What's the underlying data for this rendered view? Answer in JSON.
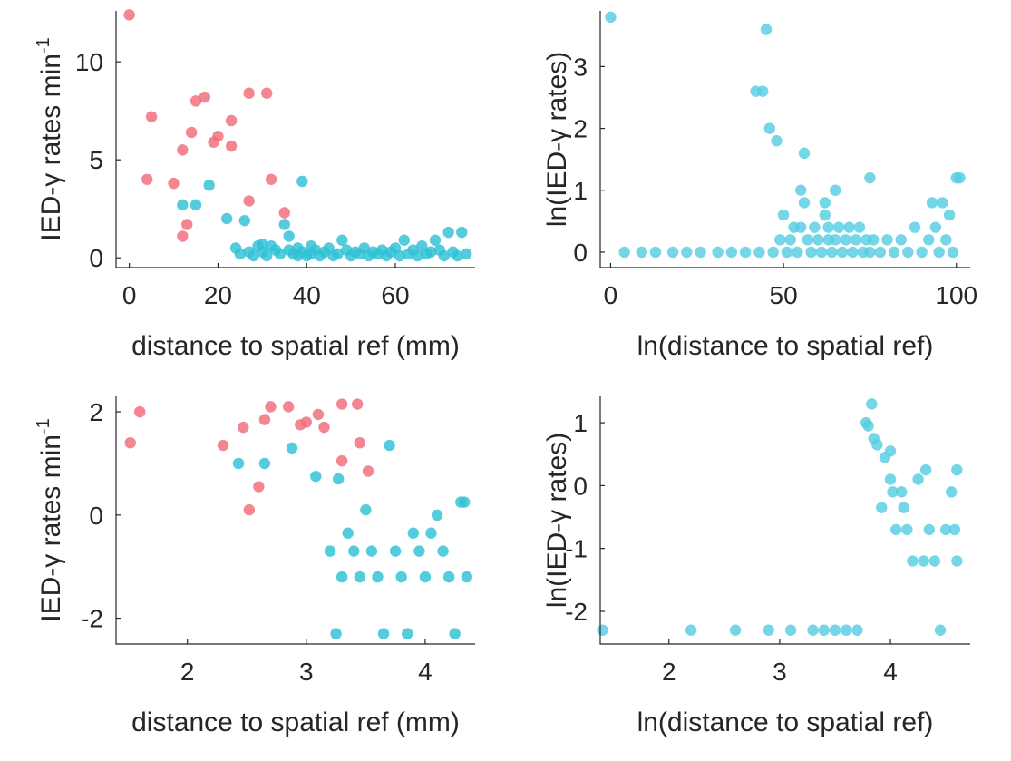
{
  "colors": {
    "red": "#F26B7A",
    "cyan": "#2EC1D6",
    "cyan_light": "#55CDE0",
    "axis": "#262626"
  },
  "chart_data": [
    {
      "type": "scatter",
      "xlabel": "distance to spatial ref (mm)",
      "ylabel": "IED-γ rates min",
      "ylabel_sup": "-1",
      "xlim": [
        -3,
        78
      ],
      "ylim": [
        -0.5,
        12.6
      ],
      "xticks": [
        0,
        20,
        40,
        60
      ],
      "yticks": [
        0,
        5,
        10
      ],
      "tick_labels_x": [
        "0",
        "20",
        "40",
        "60"
      ],
      "tick_labels_y": [
        "0",
        "5",
        "10"
      ],
      "series": [
        {
          "color": "red",
          "points": [
            [
              0,
              12.4
            ],
            [
              4,
              4.0
            ],
            [
              5,
              7.2
            ],
            [
              10,
              3.8
            ],
            [
              12,
              1.1
            ],
            [
              12,
              5.5
            ],
            [
              13,
              1.7
            ],
            [
              14,
              6.4
            ],
            [
              15,
              8.0
            ],
            [
              17,
              8.2
            ],
            [
              19,
              5.9
            ],
            [
              20,
              6.2
            ],
            [
              23,
              5.7
            ],
            [
              23,
              7.0
            ],
            [
              27,
              2.9
            ],
            [
              27,
              8.4
            ],
            [
              31,
              8.4
            ],
            [
              32,
              4.0
            ],
            [
              35,
              2.3
            ]
          ]
        },
        {
          "color": "cyan",
          "points": [
            [
              12,
              2.7
            ],
            [
              15,
              2.7
            ],
            [
              18,
              3.7
            ],
            [
              22,
              2.0
            ],
            [
              24,
              0.5
            ],
            [
              25,
              0.2
            ],
            [
              26,
              1.9
            ],
            [
              27,
              0.3
            ],
            [
              28,
              0.1
            ],
            [
              29,
              0.6
            ],
            [
              30,
              0.3
            ],
            [
              30,
              0.7
            ],
            [
              31,
              0.1
            ],
            [
              32,
              0.6
            ],
            [
              33,
              0.4
            ],
            [
              34,
              0.2
            ],
            [
              35,
              1.7
            ],
            [
              36,
              1.1
            ],
            [
              36,
              0.4
            ],
            [
              37,
              0.2
            ],
            [
              38,
              0.5
            ],
            [
              38,
              0.1
            ],
            [
              39,
              3.9
            ],
            [
              39,
              0.3
            ],
            [
              40,
              0.1
            ],
            [
              41,
              0.6
            ],
            [
              41,
              0.2
            ],
            [
              42,
              0.4
            ],
            [
              43,
              0.1
            ],
            [
              44,
              0.3
            ],
            [
              45,
              0.5
            ],
            [
              46,
              0.1
            ],
            [
              47,
              0.2
            ],
            [
              48,
              0.9
            ],
            [
              49,
              0.4
            ],
            [
              50,
              0.1
            ],
            [
              51,
              0.3
            ],
            [
              52,
              0.2
            ],
            [
              53,
              0.5
            ],
            [
              54,
              0.1
            ],
            [
              55,
              0.3
            ],
            [
              56,
              0.2
            ],
            [
              57,
              0.4
            ],
            [
              58,
              0.1
            ],
            [
              59,
              0.3
            ],
            [
              60,
              0.5
            ],
            [
              61,
              0.1
            ],
            [
              62,
              0.9
            ],
            [
              63,
              0.2
            ],
            [
              64,
              0.4
            ],
            [
              65,
              0.1
            ],
            [
              66,
              0.6
            ],
            [
              67,
              0.2
            ],
            [
              68,
              0.3
            ],
            [
              69,
              0.9
            ],
            [
              70,
              0.4
            ],
            [
              71,
              0.1
            ],
            [
              72,
              1.3
            ],
            [
              73,
              0.3
            ],
            [
              74,
              0.1
            ],
            [
              75,
              1.3
            ],
            [
              76,
              0.2
            ]
          ]
        }
      ]
    },
    {
      "type": "scatter",
      "xlabel": "ln(distance to spatial ref)",
      "ylabel": "ln(IED-γ rates)",
      "xlim": [
        -3,
        104
      ],
      "ylim": [
        -0.25,
        3.9
      ],
      "xticks": [
        0,
        50,
        100
      ],
      "yticks": [
        0,
        1,
        2,
        3
      ],
      "tick_labels_x": [
        "0",
        "50",
        "100"
      ],
      "tick_labels_y": [
        "0",
        "1",
        "2",
        "3"
      ],
      "series": [
        {
          "color": "cyan_light",
          "points": [
            [
              0,
              3.8
            ],
            [
              4,
              0
            ],
            [
              9,
              0
            ],
            [
              13,
              0
            ],
            [
              18,
              0
            ],
            [
              22,
              0
            ],
            [
              26,
              0
            ],
            [
              31,
              0
            ],
            [
              35,
              0
            ],
            [
              39,
              0
            ],
            [
              42,
              2.6
            ],
            [
              43,
              0
            ],
            [
              44,
              2.6
            ],
            [
              45,
              3.6
            ],
            [
              46,
              2.0
            ],
            [
              47,
              0
            ],
            [
              48,
              1.8
            ],
            [
              49,
              0.2
            ],
            [
              50,
              0.6
            ],
            [
              51,
              0
            ],
            [
              52,
              0.2
            ],
            [
              53,
              0.4
            ],
            [
              54,
              0
            ],
            [
              55,
              1.0
            ],
            [
              55,
              0.4
            ],
            [
              56,
              1.6
            ],
            [
              56,
              0.8
            ],
            [
              57,
              0.2
            ],
            [
              58,
              0
            ],
            [
              59,
              0.4
            ],
            [
              60,
              0.2
            ],
            [
              61,
              0
            ],
            [
              62,
              0.8
            ],
            [
              62,
              0.6
            ],
            [
              63,
              0.4
            ],
            [
              63,
              0.2
            ],
            [
              64,
              0
            ],
            [
              65,
              1.0
            ],
            [
              65,
              0.2
            ],
            [
              66,
              0.4
            ],
            [
              67,
              0
            ],
            [
              68,
              0.2
            ],
            [
              69,
              0.4
            ],
            [
              70,
              0
            ],
            [
              71,
              0.2
            ],
            [
              72,
              0.4
            ],
            [
              73,
              0
            ],
            [
              74,
              0.2
            ],
            [
              75,
              1.2
            ],
            [
              75,
              0
            ],
            [
              76,
              0.2
            ],
            [
              78,
              0
            ],
            [
              80,
              0.2
            ],
            [
              82,
              0
            ],
            [
              84,
              0.2
            ],
            [
              86,
              0
            ],
            [
              88,
              0.4
            ],
            [
              90,
              0
            ],
            [
              92,
              0.2
            ],
            [
              93,
              0.8
            ],
            [
              94,
              0.4
            ],
            [
              95,
              0
            ],
            [
              96,
              0.8
            ],
            [
              97,
              0.2
            ],
            [
              98,
              0.6
            ],
            [
              99,
              0
            ],
            [
              100,
              1.2
            ],
            [
              101,
              1.2
            ]
          ]
        }
      ]
    },
    {
      "type": "scatter",
      "xlabel": "distance to spatial ref (mm)",
      "ylabel": "IED-γ rates min",
      "ylabel_sup": "-1",
      "xlim": [
        1.4,
        4.42
      ],
      "ylim": [
        -2.5,
        2.3
      ],
      "xticks": [
        2,
        3,
        4
      ],
      "yticks": [
        -2,
        0,
        2
      ],
      "tick_labels_x": [
        "2",
        "3",
        "4"
      ],
      "tick_labels_y": [
        "-2",
        "0",
        "2"
      ],
      "series": [
        {
          "color": "red",
          "points": [
            [
              1.52,
              1.4
            ],
            [
              1.6,
              2.0
            ],
            [
              2.3,
              1.35
            ],
            [
              2.47,
              1.7
            ],
            [
              2.52,
              0.1
            ],
            [
              2.6,
              0.55
            ],
            [
              2.65,
              1.85
            ],
            [
              2.7,
              2.1
            ],
            [
              2.85,
              2.1
            ],
            [
              2.95,
              1.75
            ],
            [
              3.0,
              1.8
            ],
            [
              3.1,
              1.95
            ],
            [
              3.15,
              1.7
            ],
            [
              3.3,
              2.15
            ],
            [
              3.3,
              1.05
            ],
            [
              3.43,
              2.15
            ],
            [
              3.45,
              1.4
            ],
            [
              3.52,
              0.85
            ]
          ]
        },
        {
          "color": "cyan",
          "points": [
            [
              2.43,
              1.0
            ],
            [
              2.65,
              1.0
            ],
            [
              2.88,
              1.3
            ],
            [
              3.08,
              0.75
            ],
            [
              3.2,
              -0.7
            ],
            [
              3.25,
              -2.3
            ],
            [
              3.27,
              0.7
            ],
            [
              3.3,
              -1.2
            ],
            [
              3.35,
              -0.35
            ],
            [
              3.4,
              -0.7
            ],
            [
              3.45,
              -1.2
            ],
            [
              3.5,
              0.1
            ],
            [
              3.55,
              -0.7
            ],
            [
              3.6,
              -1.2
            ],
            [
              3.65,
              -2.3
            ],
            [
              3.7,
              1.35
            ],
            [
              3.75,
              -0.7
            ],
            [
              3.8,
              -1.2
            ],
            [
              3.85,
              -2.3
            ],
            [
              3.9,
              -0.35
            ],
            [
              3.95,
              -0.7
            ],
            [
              4.0,
              -1.2
            ],
            [
              4.05,
              -0.35
            ],
            [
              4.1,
              0.0
            ],
            [
              4.15,
              -0.7
            ],
            [
              4.2,
              -1.2
            ],
            [
              4.25,
              -2.3
            ],
            [
              4.3,
              0.25
            ],
            [
              4.33,
              0.25
            ],
            [
              4.35,
              -1.2
            ]
          ]
        }
      ]
    },
    {
      "type": "scatter",
      "xlabel": "ln(distance to spatial ref)",
      "ylabel": "ln(IED-γ rates)",
      "xlim": [
        1.38,
        4.72
      ],
      "ylim": [
        -2.52,
        1.42
      ],
      "xticks": [
        2,
        3,
        4
      ],
      "yticks": [
        -2,
        -1,
        0,
        1
      ],
      "tick_labels_x": [
        "2",
        "3",
        "4"
      ],
      "tick_labels_y": [
        "-2",
        "-1",
        "0",
        "1"
      ],
      "series": [
        {
          "color": "cyan_light",
          "points": [
            [
              1.4,
              -2.3
            ],
            [
              2.2,
              -2.3
            ],
            [
              2.6,
              -2.3
            ],
            [
              2.9,
              -2.3
            ],
            [
              3.1,
              -2.3
            ],
            [
              3.3,
              -2.3
            ],
            [
              3.4,
              -2.3
            ],
            [
              3.5,
              -2.3
            ],
            [
              3.6,
              -2.3
            ],
            [
              3.7,
              -2.3
            ],
            [
              3.78,
              1.0
            ],
            [
              3.8,
              0.95
            ],
            [
              3.83,
              1.3
            ],
            [
              3.85,
              0.75
            ],
            [
              3.88,
              0.65
            ],
            [
              3.92,
              -0.35
            ],
            [
              3.95,
              0.45
            ],
            [
              4.0,
              0.55
            ],
            [
              4.0,
              0.1
            ],
            [
              4.02,
              -0.1
            ],
            [
              4.05,
              -0.7
            ],
            [
              4.1,
              -0.1
            ],
            [
              4.12,
              -0.35
            ],
            [
              4.15,
              -0.7
            ],
            [
              4.2,
              -1.2
            ],
            [
              4.25,
              0.1
            ],
            [
              4.3,
              -1.2
            ],
            [
              4.32,
              0.25
            ],
            [
              4.35,
              -0.7
            ],
            [
              4.4,
              -1.2
            ],
            [
              4.45,
              -2.3
            ],
            [
              4.5,
              -0.7
            ],
            [
              4.55,
              -0.1
            ],
            [
              4.58,
              -0.7
            ],
            [
              4.6,
              0.25
            ],
            [
              4.6,
              -1.2
            ]
          ]
        }
      ]
    }
  ]
}
